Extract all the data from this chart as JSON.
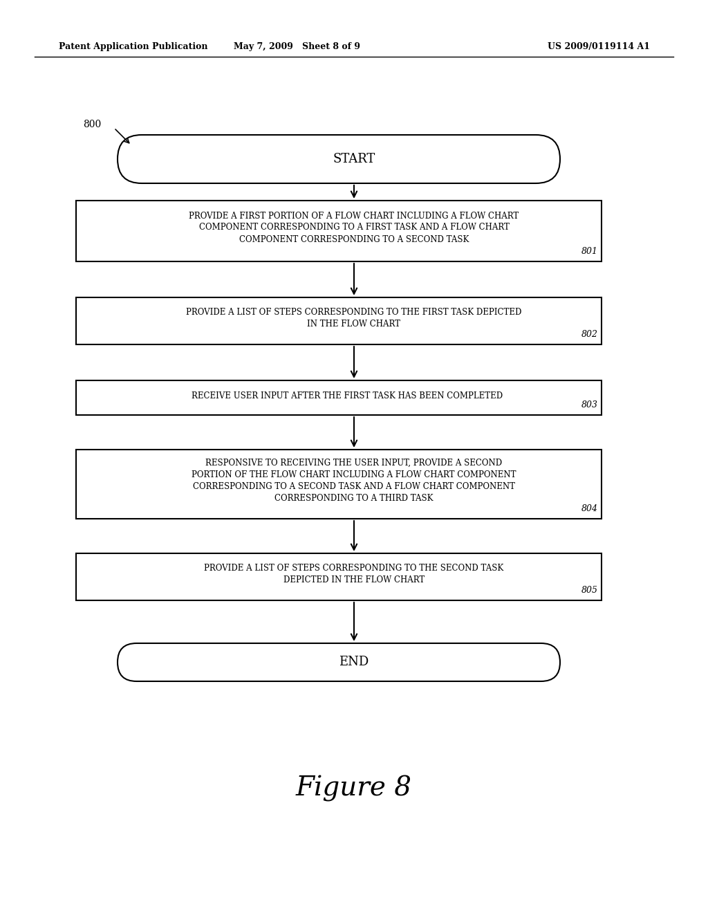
{
  "bg_color": "#ffffff",
  "header_left": "Patent Application Publication",
  "header_mid": "May 7, 2009   Sheet 8 of 9",
  "header_right": "US 2009/0119114 A1",
  "figure_label": "Figure 8",
  "diagram_label": "800",
  "start_text": "START",
  "end_text": "END",
  "boxes": [
    {
      "id": "801",
      "lines": [
        "PROVIDE A FIRST PORTION OF A FLOW CHART INCLUDING A FLOW CHART",
        "COMPONENT CORRESPONDING TO A FIRST TASK AND A FLOW CHART",
        "COMPONENT CORRESPONDING TO A SECOND TASK"
      ],
      "label": "801"
    },
    {
      "id": "802",
      "lines": [
        "PROVIDE A LIST OF STEPS CORRESPONDING TO THE FIRST TASK DEPICTED",
        "IN THE FLOW CHART"
      ],
      "label": "802"
    },
    {
      "id": "803",
      "lines": [
        "RECEIVE USER INPUT AFTER THE FIRST TASK HAS BEEN COMPLETED"
      ],
      "label": "803"
    },
    {
      "id": "804",
      "lines": [
        "RESPONSIVE TO RECEIVING THE USER INPUT, PROVIDE A SECOND",
        "PORTION OF THE FLOW CHART INCLUDING A FLOW CHART COMPONENT",
        "CORRESPONDING TO A SECOND TASK AND A FLOW CHART COMPONENT",
        "CORRESPONDING TO A THIRD TASK"
      ],
      "label": "804"
    },
    {
      "id": "805",
      "lines": [
        "PROVIDE A LIST OF STEPS CORRESPONDING TO THE SECOND TASK",
        "DEPICTED IN THE FLOW CHART"
      ],
      "label": "805"
    }
  ]
}
